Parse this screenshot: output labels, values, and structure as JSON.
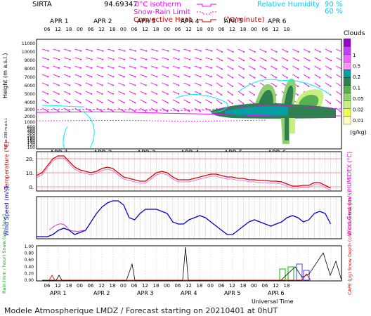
{
  "header": {
    "site": "SIRTA",
    "coord": "94.69347",
    "zero_isotherm": "0°C isotherm",
    "snow_rain_limit": "Snow-Rain Limit",
    "convective_heat": "Convective Heat.",
    "unit": "(°C/minute)",
    "rh_label": "Relative Humidity",
    "rh_90": "90 %",
    "rh_60": "60 %"
  },
  "footer": "Modele Atmospherique LMDZ / Forecast starting on 20210401 at 0hUT",
  "time_axis": {
    "days": [
      "APR 1",
      "APR 2",
      "APR 3",
      "APR 4",
      "APR 5",
      "APR 6"
    ],
    "hours": [
      "06",
      "12",
      "18",
      "00",
      "06",
      "12",
      "18",
      "00",
      "06",
      "12",
      "18",
      "00",
      "06",
      "12",
      "18",
      "00",
      "06",
      "12",
      "18",
      "00",
      "06",
      "12",
      "18"
    ],
    "xlabel": "Universal Time"
  },
  "colors": {
    "cloud_scale": [
      "#9b00d0",
      "#c040ff",
      "#ee60ff",
      "#ff90ff",
      "#00a0a0",
      "#2f8050",
      "#58b050",
      "#90d070",
      "#c8f080",
      "#f0ff50",
      "#ffffc0"
    ],
    "temperature": "#dd0000",
    "wind": "#0000cc",
    "precip_rain": "#00bb00",
    "precip_snow": "#4444ff",
    "magenta": "#ff00ff",
    "cyan": "#00eeff"
  },
  "chart_data": [
    {
      "type": "heatmap",
      "title": "Clouds",
      "ylabel": "Height (m a.s.l.)",
      "ylabel_low": "Up to 200 m a.s.l.",
      "y_ticks": [
        "11000",
        "10000",
        "9000",
        "8000",
        "7000",
        "6000",
        "5000",
        "4000",
        "3000",
        "2000",
        "1000",
        "600",
        "500",
        "400",
        "300",
        "200",
        "180",
        "160",
        "140",
        "120",
        "100"
      ],
      "colorbar_ticks": [
        "1",
        "0.5",
        "0.2",
        "0.1",
        "0.05",
        "0.02",
        "0.01"
      ],
      "colorbar_unit": "(g/kg)"
    },
    {
      "type": "line",
      "ylabel": "Temperature (°C)",
      "ylabel_right": "HUMIDEX (°C)",
      "y_ticks": [
        "20.",
        "10.",
        "0."
      ],
      "ylim": [
        -3,
        25
      ],
      "series": [
        {
          "x": [
            0,
            3,
            6,
            9,
            12,
            15,
            18,
            21,
            24,
            27,
            30,
            33,
            36,
            39,
            42,
            45,
            48,
            51,
            54,
            57,
            60,
            63,
            66,
            69,
            72,
            75,
            78,
            81,
            84,
            87,
            90,
            93,
            96,
            99,
            102,
            105,
            108,
            111,
            114,
            117,
            120,
            123,
            126,
            129,
            132,
            135,
            138,
            141,
            144,
            147,
            150,
            153,
            156,
            159,
            162
          ],
          "values": [
            8,
            10,
            15,
            20,
            22,
            22,
            18,
            14,
            12,
            11,
            10,
            11,
            13,
            14,
            13,
            10,
            7,
            6,
            5,
            4,
            4,
            7,
            10,
            11,
            10,
            7,
            5,
            5,
            5,
            6,
            7,
            8,
            9,
            9,
            8,
            7,
            7,
            6,
            6,
            5,
            5,
            4.5,
            4.5,
            4,
            4,
            3.5,
            2,
            0.5,
            0.5,
            1,
            1,
            3,
            3,
            1,
            -1
          ]
        }
      ]
    },
    {
      "type": "line",
      "ylabel": "Wind Speed (m/s)",
      "ylabel_right": "Wind Gust (m/s)",
      "series": [
        {
          "x": [
            0,
            3,
            6,
            9,
            12,
            15,
            18,
            21,
            24,
            27,
            30,
            33,
            36,
            39,
            42,
            45,
            48,
            51,
            54,
            57,
            60,
            63,
            66,
            69,
            72,
            75,
            78,
            81,
            84,
            87,
            90,
            93,
            96,
            99,
            102,
            105,
            108,
            111,
            114,
            117,
            120,
            123,
            126,
            129,
            132,
            135,
            138,
            141,
            144,
            147,
            150,
            153,
            156,
            159,
            162
          ],
          "values": [
            0.5,
            0.5,
            0.5,
            1,
            2,
            2.5,
            2,
            1,
            1.5,
            2,
            4,
            6,
            7.5,
            8.5,
            9,
            9,
            8,
            5,
            4.5,
            6,
            7,
            7,
            7,
            6.5,
            6,
            4,
            3.5,
            3.5,
            4.5,
            5,
            5.5,
            5,
            4,
            3,
            2,
            1,
            1,
            2,
            3,
            4,
            4.5,
            4,
            3.5,
            3,
            3.5,
            4,
            5,
            5.5,
            5,
            4,
            4.5,
            6,
            6.5,
            6,
            3.5
          ]
        }
      ]
    },
    {
      "type": "bar",
      "ylabel": "Rain (mm / hour) Snow (cm / hour)",
      "ylabel_right": "CAPE (J/g) Snow Depth (cm) Cloud Fraction",
      "y_ticks": [
        "1.00",
        "0.80",
        "0.60",
        "0.40",
        "0.20",
        "0.00"
      ]
    }
  ]
}
